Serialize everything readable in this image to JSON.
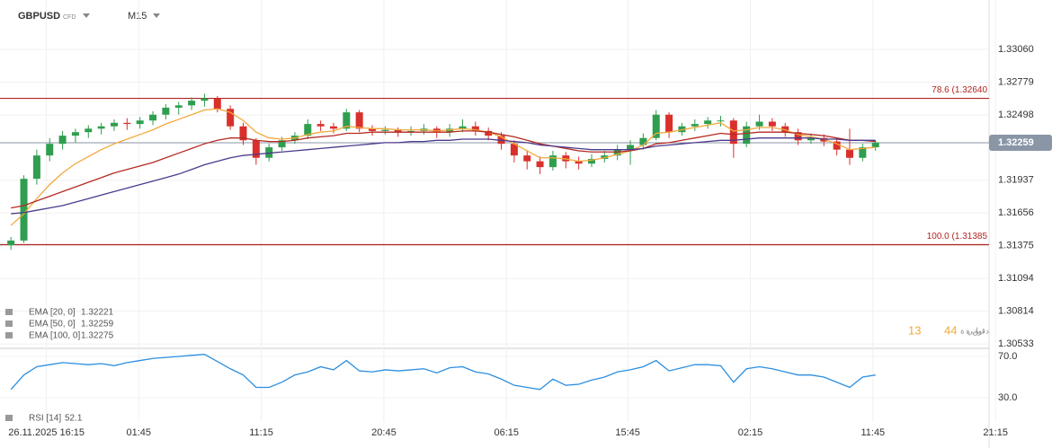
{
  "header": {
    "symbol": "GBPUSD",
    "symbol_type": "CFD",
    "timeframe": "M15"
  },
  "countdown": {
    "minutes": "13",
    "minutes_label": "دقيق ة",
    "seconds": "44",
    "seconds_label": "ثواني ة"
  },
  "chart_data": {
    "type": "candlestick",
    "xlim": [
      0,
      76.3
    ],
    "xticks": [
      {
        "value": 3.25,
        "label": "26.11.2025 16:15"
      },
      {
        "value": 10.4,
        "label": "01:45"
      },
      {
        "value": 19.9,
        "label": "11:15"
      },
      {
        "value": 29.4,
        "label": "20:45"
      },
      {
        "value": 38.9,
        "label": "06:15"
      },
      {
        "value": 48.3,
        "label": "15:45"
      },
      {
        "value": 57.8,
        "label": "02:15"
      },
      {
        "value": 67.3,
        "label": "11:45"
      },
      {
        "value": 76.8,
        "label": "21:15"
      }
    ],
    "ylim": [
      1.30495,
      1.33484
    ],
    "yticks": [
      {
        "value": 1.3306,
        "label": "1.33060"
      },
      1.32779,
      1.32498,
      1.31937,
      1.31656,
      1.31375,
      1.31094,
      1.30814,
      1.30533
    ],
    "grid": true,
    "up_color": "#2f9e4f",
    "down_color": "#d9302c",
    "last_price": 1.32259,
    "levels": [
      {
        "label": "78.6 (1.32640",
        "value": 1.3264,
        "color": "#b0241f"
      },
      {
        "label": "100.0 (1.31385",
        "value": 1.31385,
        "color": "#b0241f"
      }
    ],
    "candles": [
      [
        1.3138,
        1.3145,
        1.3134,
        1.3142
      ],
      [
        1.3142,
        1.3198,
        1.314,
        1.3195
      ],
      [
        1.3195,
        1.322,
        1.319,
        1.3215
      ],
      [
        1.3215,
        1.323,
        1.321,
        1.3225
      ],
      [
        1.3225,
        1.3236,
        1.322,
        1.3232
      ],
      [
        1.3232,
        1.3238,
        1.3226,
        1.3235
      ],
      [
        1.3235,
        1.3241,
        1.323,
        1.3238
      ],
      [
        1.3238,
        1.3243,
        1.3233,
        1.324
      ],
      [
        1.324,
        1.3246,
        1.3236,
        1.3243
      ],
      [
        1.3243,
        1.3247,
        1.3237,
        1.3242
      ],
      [
        1.3242,
        1.3248,
        1.3238,
        1.3245
      ],
      [
        1.3245,
        1.3253,
        1.3241,
        1.325
      ],
      [
        1.325,
        1.3259,
        1.3246,
        1.3256
      ],
      [
        1.3256,
        1.3261,
        1.325,
        1.3258
      ],
      [
        1.3258,
        1.3265,
        1.3254,
        1.3262
      ],
      [
        1.3262,
        1.3268,
        1.3257,
        1.3264
      ],
      [
        1.3264,
        1.3266,
        1.3252,
        1.3255
      ],
      [
        1.3255,
        1.3258,
        1.3237,
        1.324
      ],
      [
        1.324,
        1.3243,
        1.3224,
        1.3228
      ],
      [
        1.3228,
        1.323,
        1.3207,
        1.3213
      ],
      [
        1.3213,
        1.3225,
        1.321,
        1.3222
      ],
      [
        1.3222,
        1.3231,
        1.3219,
        1.3228
      ],
      [
        1.3228,
        1.3235,
        1.3225,
        1.3232
      ],
      [
        1.3232,
        1.3246,
        1.3229,
        1.3242
      ],
      [
        1.3242,
        1.3245,
        1.3236,
        1.324
      ],
      [
        1.324,
        1.3243,
        1.3234,
        1.3238
      ],
      [
        1.3238,
        1.3255,
        1.3236,
        1.3252
      ],
      [
        1.3252,
        1.3254,
        1.3235,
        1.3238
      ],
      [
        1.3238,
        1.3241,
        1.3232,
        1.3236
      ],
      [
        1.3236,
        1.324,
        1.3233,
        1.3237
      ],
      [
        1.3237,
        1.3239,
        1.3231,
        1.3235
      ],
      [
        1.3235,
        1.324,
        1.3232,
        1.3236
      ],
      [
        1.3236,
        1.3242,
        1.3233,
        1.3238
      ],
      [
        1.3238,
        1.324,
        1.323,
        1.3235
      ],
      [
        1.3235,
        1.3242,
        1.3231,
        1.3238
      ],
      [
        1.3238,
        1.3246,
        1.3235,
        1.324
      ],
      [
        1.324,
        1.3244,
        1.3232,
        1.3236
      ],
      [
        1.3236,
        1.3239,
        1.3228,
        1.3232
      ],
      [
        1.3232,
        1.3235,
        1.322,
        1.3225
      ],
      [
        1.3225,
        1.3228,
        1.3209,
        1.3215
      ],
      [
        1.3215,
        1.3219,
        1.3203,
        1.321
      ],
      [
        1.321,
        1.3214,
        1.3199,
        1.3205
      ],
      [
        1.3205,
        1.3219,
        1.3202,
        1.3215
      ],
      [
        1.3215,
        1.3218,
        1.3204,
        1.321
      ],
      [
        1.321,
        1.3214,
        1.3203,
        1.3208
      ],
      [
        1.3208,
        1.3216,
        1.3205,
        1.3212
      ],
      [
        1.3212,
        1.3219,
        1.3209,
        1.3215
      ],
      [
        1.3215,
        1.3224,
        1.3211,
        1.322
      ],
      [
        1.322,
        1.3228,
        1.3207,
        1.3224
      ],
      [
        1.3224,
        1.3234,
        1.322,
        1.323
      ],
      [
        1.323,
        1.3254,
        1.3228,
        1.325
      ],
      [
        1.325,
        1.3252,
        1.323,
        1.3235
      ],
      [
        1.3235,
        1.3243,
        1.3232,
        1.324
      ],
      [
        1.324,
        1.3246,
        1.3236,
        1.3242
      ],
      [
        1.3242,
        1.3248,
        1.3238,
        1.3245
      ],
      [
        1.3245,
        1.3249,
        1.324,
        1.3245
      ],
      [
        1.3245,
        1.3247,
        1.3213,
        1.3225
      ],
      [
        1.3225,
        1.3244,
        1.3222,
        1.324
      ],
      [
        1.324,
        1.325,
        1.3237,
        1.3244
      ],
      [
        1.3244,
        1.3247,
        1.3236,
        1.324
      ],
      [
        1.324,
        1.3243,
        1.3231,
        1.3235
      ],
      [
        1.3235,
        1.3238,
        1.3224,
        1.3228
      ],
      [
        1.3228,
        1.3234,
        1.3225,
        1.323
      ],
      [
        1.323,
        1.3233,
        1.3223,
        1.3227
      ],
      [
        1.3227,
        1.323,
        1.3215,
        1.322
      ],
      [
        1.322,
        1.3238,
        1.3207,
        1.3213
      ],
      [
        1.3213,
        1.3225,
        1.321,
        1.3222
      ],
      [
        1.3222,
        1.3228,
        1.3219,
        1.3226
      ]
    ],
    "series": [
      {
        "name": "EMA [20, 0]",
        "last_value": 1.32221,
        "color": "#f2a93b",
        "values": [
          1.3155,
          1.3165,
          1.3178,
          1.319,
          1.32,
          1.3208,
          1.3214,
          1.322,
          1.3225,
          1.3229,
          1.3233,
          1.3237,
          1.3242,
          1.3246,
          1.325,
          1.3254,
          1.3255,
          1.3252,
          1.3245,
          1.3235,
          1.323,
          1.3229,
          1.323,
          1.3233,
          1.3235,
          1.3236,
          1.324,
          1.3239,
          1.3238,
          1.3238,
          1.3237,
          1.3237,
          1.3237,
          1.3236,
          1.3237,
          1.3238,
          1.3237,
          1.3235,
          1.3231,
          1.3225,
          1.3219,
          1.3213,
          1.3213,
          1.3212,
          1.321,
          1.3211,
          1.3213,
          1.3216,
          1.3219,
          1.3224,
          1.3234,
          1.3235,
          1.3237,
          1.3239,
          1.3241,
          1.3243,
          1.3236,
          1.3237,
          1.3239,
          1.3239,
          1.3237,
          1.3233,
          1.3231,
          1.3229,
          1.3225,
          1.322,
          1.3221,
          1.3222
        ]
      },
      {
        "name": "EMA [50, 0]",
        "last_value": 1.32259,
        "color": "#b52a22",
        "values": [
          1.317,
          1.3172,
          1.3176,
          1.318,
          1.3184,
          1.3188,
          1.3192,
          1.3196,
          1.32,
          1.3203,
          1.3206,
          1.3209,
          1.3213,
          1.3217,
          1.3221,
          1.3225,
          1.3228,
          1.323,
          1.323,
          1.3228,
          1.3227,
          1.3227,
          1.3228,
          1.323,
          1.3231,
          1.3232,
          1.3234,
          1.3234,
          1.3235,
          1.3235,
          1.3235,
          1.3235,
          1.3235,
          1.3235,
          1.3235,
          1.3236,
          1.3236,
          1.3235,
          1.3233,
          1.3231,
          1.3228,
          1.3225,
          1.3223,
          1.3221,
          1.3219,
          1.3218,
          1.3218,
          1.3218,
          1.3219,
          1.3221,
          1.3225,
          1.3226,
          1.3228,
          1.323,
          1.3232,
          1.3234,
          1.3233,
          1.3234,
          1.3235,
          1.3235,
          1.3235,
          1.3234,
          1.3233,
          1.3232,
          1.323,
          1.3228,
          1.3228,
          1.3227
        ]
      },
      {
        "name": "EMA [100, 0]",
        "last_value": 1.32275,
        "color": "#4b3a8c",
        "values": [
          1.3165,
          1.3166,
          1.3168,
          1.317,
          1.3172,
          1.3175,
          1.3178,
          1.3181,
          1.3184,
          1.3187,
          1.319,
          1.3193,
          1.3196,
          1.3199,
          1.3203,
          1.3207,
          1.321,
          1.3213,
          1.3215,
          1.3216,
          1.3217,
          1.3218,
          1.3219,
          1.322,
          1.3221,
          1.3222,
          1.3223,
          1.3224,
          1.3225,
          1.3226,
          1.3226,
          1.3227,
          1.3227,
          1.3228,
          1.3228,
          1.3229,
          1.3229,
          1.3229,
          1.3228,
          1.3227,
          1.3226,
          1.3224,
          1.3223,
          1.3222,
          1.3221,
          1.322,
          1.322,
          1.322,
          1.322,
          1.3221,
          1.3223,
          1.3224,
          1.3225,
          1.3226,
          1.3227,
          1.3228,
          1.3228,
          1.3229,
          1.323,
          1.323,
          1.323,
          1.323,
          1.323,
          1.3229,
          1.3229,
          1.3228,
          1.3228,
          1.3228
        ]
      }
    ],
    "rsi": {
      "name": "RSI [14]",
      "last_value": 52.1,
      "color": "#2b8fe0",
      "ylim": [
        6.5,
        77.8
      ],
      "yticks": [
        {
          "value": 70,
          "label": "70.0"
        },
        {
          "value": 30,
          "label": "30.0"
        }
      ],
      "values": [
        38,
        52,
        60,
        62,
        64,
        63,
        62,
        63,
        61,
        64,
        66,
        68,
        69,
        70,
        71,
        72,
        65,
        58,
        52,
        40,
        40,
        45,
        52,
        55,
        60,
        57,
        66,
        56,
        55,
        57,
        56,
        57,
        58,
        54,
        59,
        60,
        55,
        53,
        48,
        42,
        40,
        38,
        48,
        42,
        43,
        47,
        50,
        55,
        57,
        60,
        66,
        56,
        59,
        62,
        62,
        61,
        45,
        58,
        60,
        58,
        55,
        52,
        52,
        50,
        45,
        40,
        50,
        52
      ]
    }
  }
}
